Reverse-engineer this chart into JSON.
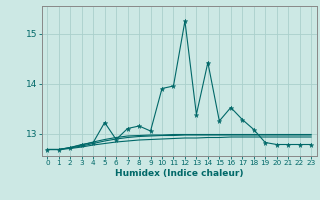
{
  "xlabel": "Humidex (Indice chaleur)",
  "bg_color": "#cce8e4",
  "grid_color": "#aad0cc",
  "line_color": "#006868",
  "spine_color": "#888888",
  "xlim": [
    -0.5,
    23.5
  ],
  "ylim": [
    12.55,
    15.55
  ],
  "yticks": [
    13,
    14,
    15
  ],
  "xticks": [
    0,
    1,
    2,
    3,
    4,
    5,
    6,
    7,
    8,
    9,
    10,
    11,
    12,
    13,
    14,
    15,
    16,
    17,
    18,
    19,
    20,
    21,
    22,
    23
  ],
  "series_main": [
    12.68,
    12.68,
    12.72,
    12.78,
    12.82,
    13.22,
    12.88,
    13.1,
    13.15,
    13.05,
    13.9,
    13.95,
    15.25,
    13.38,
    14.42,
    13.25,
    13.52,
    13.28,
    13.08,
    12.82,
    12.78,
    12.78,
    12.78,
    12.78
  ],
  "series_smooth1": [
    12.68,
    12.68,
    12.7,
    12.73,
    12.77,
    12.8,
    12.83,
    12.85,
    12.87,
    12.88,
    12.89,
    12.9,
    12.91,
    12.91,
    12.92,
    12.92,
    12.93,
    12.93,
    12.93,
    12.93,
    12.93,
    12.93,
    12.93,
    12.93
  ],
  "series_smooth2": [
    12.68,
    12.68,
    12.71,
    12.75,
    12.8,
    12.85,
    12.89,
    12.92,
    12.94,
    12.95,
    12.96,
    12.96,
    12.97,
    12.97,
    12.97,
    12.97,
    12.97,
    12.97,
    12.97,
    12.97,
    12.97,
    12.97,
    12.97,
    12.97
  ],
  "series_smooth3": [
    12.68,
    12.68,
    12.72,
    12.77,
    12.83,
    12.88,
    12.92,
    12.95,
    12.96,
    12.97,
    12.97,
    12.98,
    12.98,
    12.98,
    12.98,
    12.98,
    12.98,
    12.98,
    12.98,
    12.98,
    12.98,
    12.98,
    12.98,
    12.98
  ]
}
